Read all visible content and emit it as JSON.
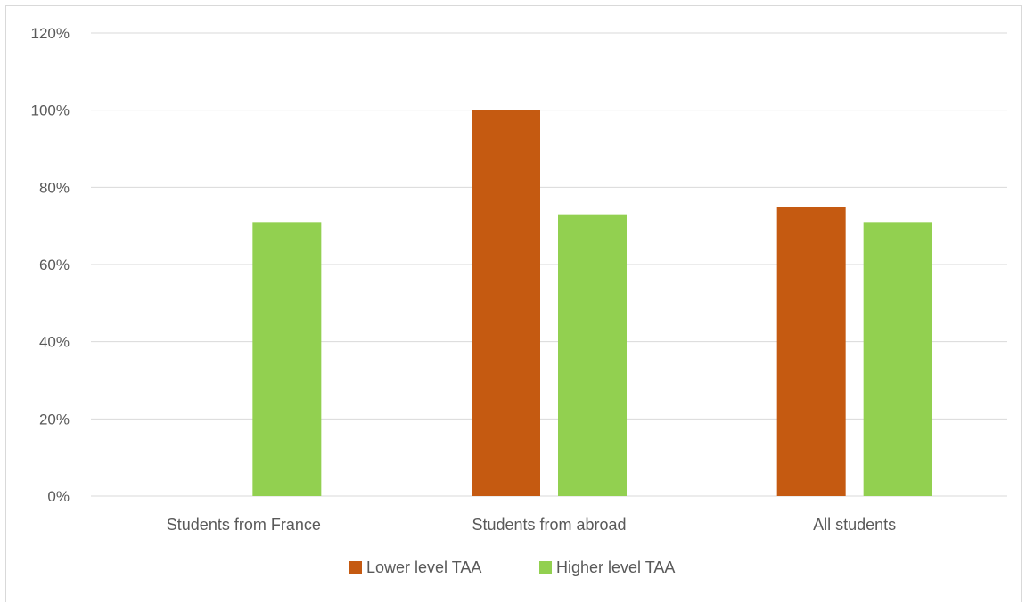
{
  "chart_data": {
    "type": "bar",
    "title": "",
    "xlabel": "",
    "ylabel": "",
    "categories": [
      "Students from France",
      "Students from abroad",
      "All students"
    ],
    "series": [
      {
        "name": "Lower level TAA",
        "values": [
          0,
          100,
          75
        ],
        "color": "#c55a11"
      },
      {
        "name": "Higher level TAA",
        "values": [
          71,
          73,
          71
        ],
        "color": "#92d050"
      }
    ],
    "ylim": [
      0,
      120
    ],
    "yticks": [
      0,
      20,
      40,
      60,
      80,
      100,
      120
    ],
    "ytick_labels": [
      "0%",
      "20%",
      "40%",
      "60%",
      "80%",
      "100%",
      "120%"
    ],
    "grid": true,
    "legend_position": "bottom"
  }
}
